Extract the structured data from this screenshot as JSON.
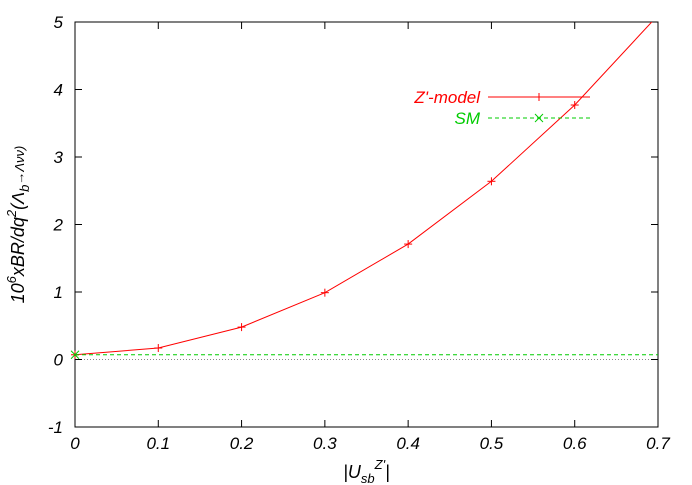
{
  "chart_data": {
    "type": "line",
    "title": "",
    "xlabel": "|U_sb^Z'|",
    "ylabel": "10^6 xBR/dq^2(Λ_b→Λνν)",
    "xlim": [
      0,
      0.7
    ],
    "ylim": [
      -1,
      5
    ],
    "x_ticks": [
      "0",
      "0.1",
      "0.2",
      "0.3",
      "0.4",
      "0.5",
      "0.6",
      "0.7"
    ],
    "y_ticks": [
      "-1",
      "0",
      "1",
      "2",
      "3",
      "4",
      "5"
    ],
    "grid": false,
    "legend_position": "top-right",
    "zero_line": true,
    "series": [
      {
        "name": "Z'-model",
        "color": "#ff0000",
        "marker": "plus",
        "line": "solid",
        "x": [
          0,
          0.1,
          0.2,
          0.3,
          0.4,
          0.5,
          0.6,
          0.7
        ],
        "y": [
          0.07,
          0.17,
          0.48,
          0.99,
          1.71,
          2.64,
          3.77,
          5.1
        ]
      },
      {
        "name": "SM",
        "color": "#00cc00",
        "marker": "cross",
        "line": "dashed",
        "x": [
          0,
          0.7
        ],
        "y": [
          0.07,
          0.07
        ]
      }
    ]
  }
}
